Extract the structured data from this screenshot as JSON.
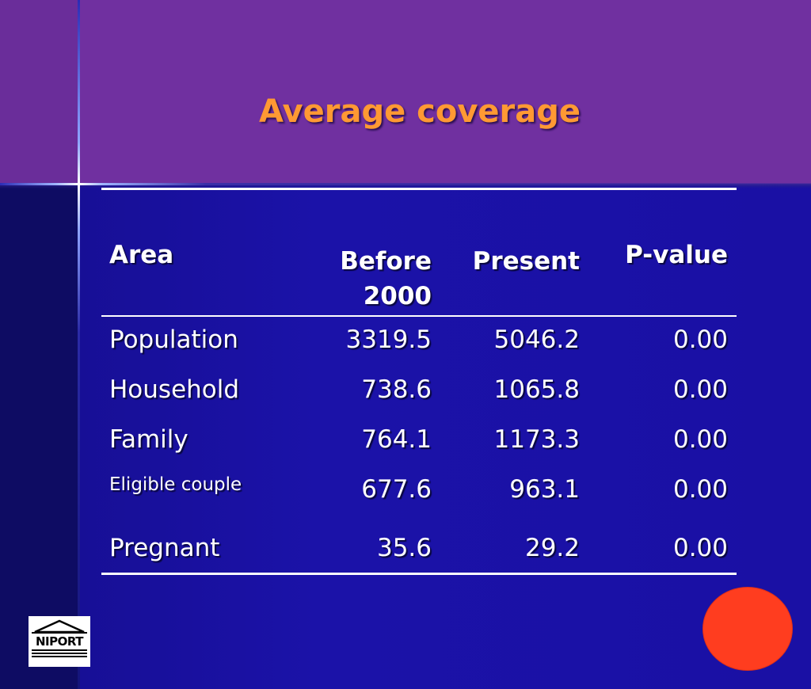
{
  "slide": {
    "title": "Average coverage"
  },
  "table": {
    "headers": {
      "area": "Area",
      "before_line1": "Before",
      "before_line2": "2000",
      "present": "Present",
      "pvalue": "P-value"
    },
    "rows": [
      {
        "area": "Population",
        "before": "3319.5",
        "present": "5046.2",
        "pvalue": "0.00"
      },
      {
        "area": "Household",
        "before": "738.6",
        "present": "1065.8",
        "pvalue": "0.00"
      },
      {
        "area": "Family",
        "before": "764.1",
        "present": "1173.3",
        "pvalue": "0.00"
      },
      {
        "area": "Eligible couple",
        "before": "677.6",
        "present": "963.1",
        "pvalue": "0.00"
      },
      {
        "area": "Pregnant",
        "before": "35.6",
        "present": "29.2",
        "pvalue": "0.00"
      }
    ]
  },
  "logo": {
    "text": "NIPORT"
  },
  "colors": {
    "title": "#ff9933",
    "header_band": "#7030a0",
    "background": "#1a10a4",
    "dot": "#ff3d1f"
  }
}
